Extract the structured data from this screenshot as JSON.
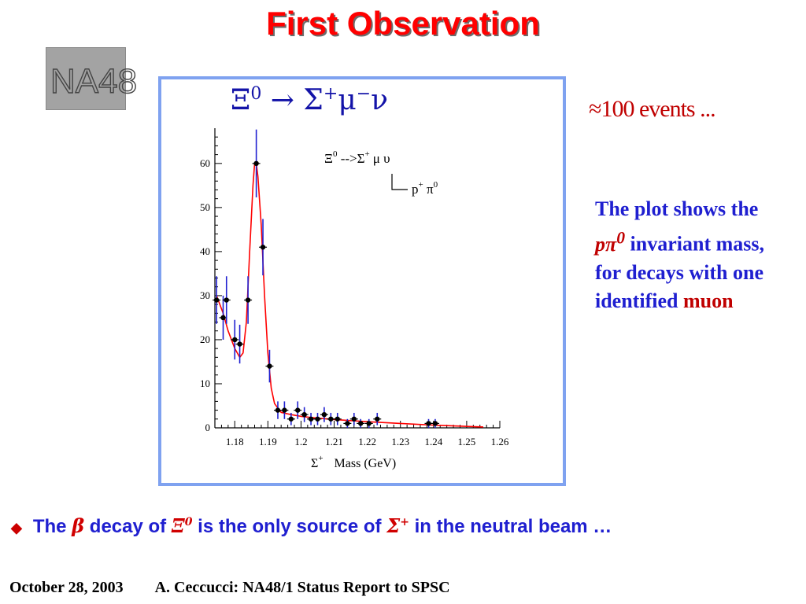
{
  "title": "First Observation",
  "logo_text": "NA48",
  "reaction": {
    "lhs": "Ξ",
    "lhs_sup": "0",
    "arrow": "→",
    "rhs1": "Σ",
    "rhs1_sup": "+",
    "rhs2": "μ",
    "rhs2_sup": "−",
    "rhs3": "ν"
  },
  "events_text": "≈100 events ...",
  "description": {
    "line1": "The plot shows the",
    "p_pi": "pπ",
    "p_pi_sup": "0",
    "line2": "invariant mass, for decays with one identified",
    "muon": "muon"
  },
  "bullet": {
    "the": "The",
    "beta": "β",
    "decay_of": "decay of",
    "xi": "Ξ",
    "xi_sup": "0",
    "middle": "is the only source of",
    "sigma": "Σ",
    "sigma_sup": "+",
    "end": "in the neutral beam …"
  },
  "footer": {
    "date": "October 28, 2003",
    "author": "A. Ceccucci: NA48/1 Status Report to SPSC"
  },
  "colors": {
    "title": "#ff0000",
    "frame": "#7fa2f0",
    "fit_curve": "#ff0000",
    "error_bar": "#2020d0",
    "description": "#1f1fd0",
    "highlight": "#c00000"
  },
  "chart_data": {
    "type": "scatter",
    "xlabel_symbol": "Σ",
    "xlabel_sup": "+",
    "xlabel": "Mass (GeV)",
    "ylabel": "",
    "xlim": [
      1.174,
      1.26
    ],
    "ylim": [
      0,
      68
    ],
    "x_ticks": [
      "1.18",
      "1.19",
      "1.2",
      "1.21",
      "1.22",
      "1.23",
      "1.24",
      "1.25",
      "1.26"
    ],
    "y_ticks": [
      "0",
      "10",
      "20",
      "30",
      "40",
      "50",
      "60"
    ],
    "legend": {
      "line1": "Ξ",
      "line1_sup": "0",
      "line1_rest": " -->Σ",
      "line1_rest_sup": "+",
      "line1_end": "μ υ",
      "line2": "p",
      "line2_sup": "+",
      "line2_end": " π",
      "line2_end_sup": "0"
    },
    "points": [
      {
        "x": 1.1745,
        "y": 29,
        "err": 5.4
      },
      {
        "x": 1.1765,
        "y": 25,
        "err": 5.0
      },
      {
        "x": 1.1775,
        "y": 29,
        "err": 5.4
      },
      {
        "x": 1.18,
        "y": 20,
        "err": 4.5
      },
      {
        "x": 1.1815,
        "y": 19,
        "err": 4.4
      },
      {
        "x": 1.184,
        "y": 29,
        "err": 5.4
      },
      {
        "x": 1.1865,
        "y": 60,
        "err": 7.7
      },
      {
        "x": 1.1885,
        "y": 41,
        "err": 6.4
      },
      {
        "x": 1.1905,
        "y": 14,
        "err": 3.7
      },
      {
        "x": 1.193,
        "y": 4,
        "err": 2.0
      },
      {
        "x": 1.195,
        "y": 4,
        "err": 2.0
      },
      {
        "x": 1.197,
        "y": 2,
        "err": 1.4
      },
      {
        "x": 1.199,
        "y": 4,
        "err": 2.0
      },
      {
        "x": 1.201,
        "y": 3,
        "err": 1.7
      },
      {
        "x": 1.203,
        "y": 2,
        "err": 1.4
      },
      {
        "x": 1.205,
        "y": 2,
        "err": 1.4
      },
      {
        "x": 1.207,
        "y": 3,
        "err": 1.7
      },
      {
        "x": 1.209,
        "y": 2,
        "err": 1.4
      },
      {
        "x": 1.211,
        "y": 2,
        "err": 1.4
      },
      {
        "x": 1.214,
        "y": 1,
        "err": 1.0
      },
      {
        "x": 1.216,
        "y": 2,
        "err": 1.4
      },
      {
        "x": 1.218,
        "y": 1,
        "err": 1.0
      },
      {
        "x": 1.2205,
        "y": 1,
        "err": 1.0
      },
      {
        "x": 1.223,
        "y": 2,
        "err": 1.4
      },
      {
        "x": 1.2385,
        "y": 1,
        "err": 1.0
      },
      {
        "x": 1.2405,
        "y": 1,
        "err": 1.0
      }
    ],
    "fit": {
      "x": [
        1.1745,
        1.1765,
        1.178,
        1.18,
        1.1815,
        1.1825,
        1.1835,
        1.1845,
        1.1855,
        1.186,
        1.1865,
        1.187,
        1.188,
        1.1885,
        1.189,
        1.19,
        1.191,
        1.192,
        1.194,
        1.197,
        1.2,
        1.205,
        1.21,
        1.22,
        1.23,
        1.24,
        1.255
      ],
      "y": [
        30,
        26,
        22,
        18,
        16,
        17,
        24,
        40,
        55,
        60,
        60,
        57,
        46,
        38,
        30,
        17,
        9,
        5.5,
        3.5,
        3.0,
        2.6,
        2.2,
        1.9,
        1.4,
        1.0,
        0.6,
        0.2
      ]
    }
  }
}
